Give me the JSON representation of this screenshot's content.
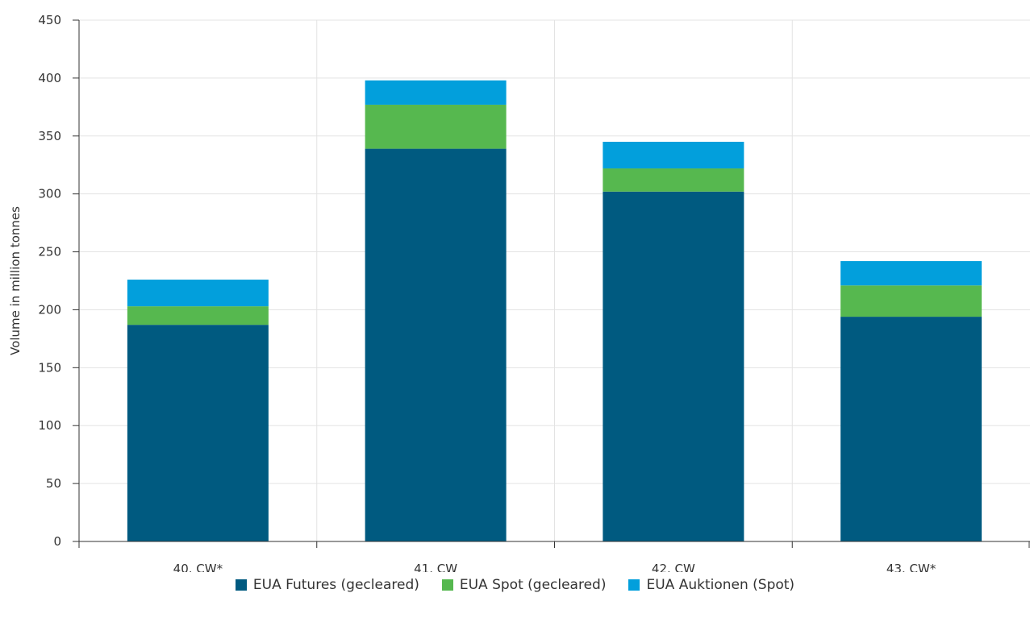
{
  "chart_data": {
    "type": "bar",
    "stacked": true,
    "title": "",
    "xlabel": "",
    "ylabel": "Volume in million tonnes",
    "ylim": [
      0,
      450
    ],
    "yticks": [
      0,
      50,
      100,
      150,
      200,
      250,
      300,
      350,
      400,
      450
    ],
    "grid": true,
    "legend_position": "bottom",
    "categories": [
      "40. CW*",
      "41. CW",
      "42. CW",
      "43. CW*"
    ],
    "series": [
      {
        "name": "EUA Futures (gecleared)",
        "color": "#005a80",
        "values": [
          187,
          339,
          302,
          194
        ]
      },
      {
        "name": "EUA Spot (gecleared)",
        "color": "#56b84f",
        "values": [
          16,
          38,
          20,
          27
        ]
      },
      {
        "name": "EUA Auktionen (Spot)",
        "color": "#029fdc",
        "values": [
          23,
          21,
          23,
          21
        ]
      }
    ]
  }
}
